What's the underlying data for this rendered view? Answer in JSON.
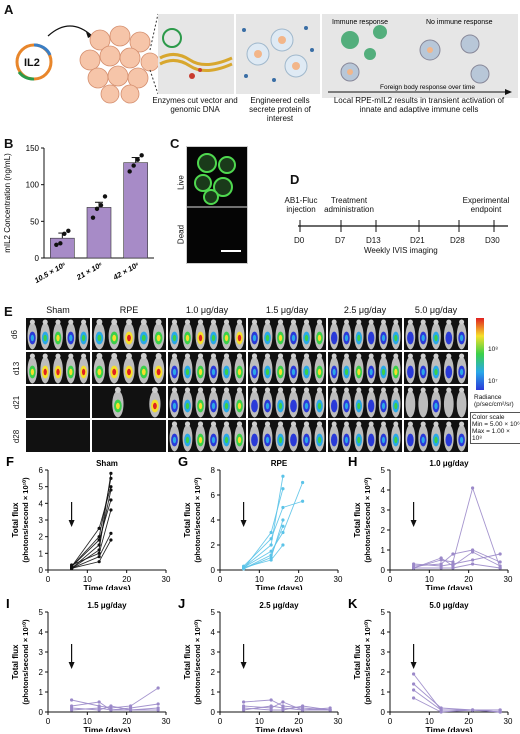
{
  "panelA": {
    "letter": "A",
    "gene": "IL2",
    "caption1": "Enzymes cut vector and genomic DNA",
    "caption2": "Engineered cells secrete protein of interest",
    "caption3": "Local RPE-mIL2 results in transient activation of innate and adaptive immune cells",
    "immune_label": "Immune response",
    "no_immune_label": "No immune response",
    "arrow_label": "Foreign body response over time"
  },
  "panelB": {
    "letter": "B",
    "chart_data": {
      "type": "bar",
      "categories": [
        "10.5 × 10⁶",
        "21 × 10⁶",
        "42 × 10⁶"
      ],
      "values": [
        27,
        69,
        130
      ],
      "errors": [
        7,
        7,
        7
      ],
      "points": [
        [
          18,
          20,
          33,
          37
        ],
        [
          55,
          67,
          72,
          84
        ],
        [
          118,
          126,
          134,
          140
        ]
      ],
      "ylabel": "mIL2 Concentration (ng/mL)",
      "yticks": [
        "0",
        "50",
        "100",
        "150"
      ],
      "ylim": [
        0,
        150
      ],
      "bar_color": "#a78bc7"
    }
  },
  "panelC": {
    "letter": "C",
    "live": "Live",
    "dead": "Dead"
  },
  "panelD": {
    "letter": "D",
    "top_labels": [
      "AB1-Fluc injection",
      "Treatment administration",
      "Experimental endpoint"
    ],
    "ticks": [
      "D0",
      "D7",
      "D13",
      "D21",
      "D28",
      "D30"
    ],
    "weekly": "Weekly IVIS imaging"
  },
  "panelE": {
    "letter": "E",
    "columns": [
      "Sham",
      "RPE",
      "1.0 μg/day",
      "1.5 μg/day",
      "2.5 μg/day",
      "5.0 μg/day"
    ],
    "rows": [
      "d6",
      "d13",
      "d21",
      "d28"
    ],
    "scale_high": "10⁸",
    "scale_low": "10⁷",
    "radiance": "Radiance (p/sec/cm²/sr)",
    "color_scale": "Color scale",
    "scale_min": "Min = 5.00 × 10⁶",
    "scale_max": "Max = 1.00 × 10⁸"
  },
  "flux_panels": [
    {
      "letter": "F",
      "title": "Sham",
      "color": "#111111",
      "ymax": 6,
      "yticks": [
        "0",
        "1",
        "2",
        "3",
        "4",
        "5",
        "6"
      ],
      "arrow_day": 6,
      "chart_data": {
        "type": "line",
        "x": [
          6,
          13,
          16
        ],
        "series": [
          {
            "values": [
              0.1,
              1.2,
              5.8
            ]
          },
          {
            "values": [
              0.2,
              2.0,
              5.5
            ]
          },
          {
            "values": [
              0.1,
              1.5,
              4.8
            ]
          },
          {
            "values": [
              0.3,
              1.0,
              3.6
            ]
          },
          {
            "values": [
              0.2,
              2.5,
              5.0
            ]
          },
          {
            "values": [
              0.1,
              0.8,
              2.2
            ]
          },
          {
            "values": [
              0.2,
              1.8,
              4.2
            ]
          },
          {
            "values": [
              0.1,
              0.5,
              1.8
            ]
          }
        ]
      }
    },
    {
      "letter": "G",
      "title": "RPE",
      "color": "#5bc3e8",
      "ymax": 8,
      "yticks": [
        "0",
        "2",
        "4",
        "6",
        "8"
      ],
      "arrow_day": 6,
      "chart_data": {
        "type": "line",
        "x": [
          6,
          13,
          16,
          21
        ],
        "series": [
          {
            "values": [
              0.2,
              2.0,
              7.5,
              null
            ]
          },
          {
            "values": [
              0.1,
              3.0,
              6.5,
              null
            ]
          },
          {
            "values": [
              0.3,
              2.5,
              5.0,
              5.5
            ]
          },
          {
            "values": [
              0.2,
              1.5,
              3.0,
              7.0
            ]
          },
          {
            "values": [
              0.1,
              1.0,
              4.0,
              null
            ]
          },
          {
            "values": [
              0.2,
              0.8,
              2.0,
              null
            ]
          },
          {
            "values": [
              0.1,
              1.2,
              3.5,
              null
            ]
          }
        ]
      }
    },
    {
      "letter": "H",
      "title": "1.0 μg/day",
      "color": "#9b89c9",
      "ymax": 5,
      "yticks": [
        "0",
        "1",
        "2",
        "3",
        "4",
        "5"
      ],
      "arrow_day": 6,
      "chart_data": {
        "type": "line",
        "x": [
          6,
          13,
          16,
          21,
          28
        ],
        "series": [
          {
            "values": [
              0.1,
              0.5,
              0.4,
              4.1,
              0.1
            ]
          },
          {
            "values": [
              0.2,
              0.3,
              0.8,
              1.0,
              0.4
            ]
          },
          {
            "values": [
              0.1,
              0.6,
              0.2,
              0.9,
              0.2
            ]
          },
          {
            "values": [
              0.3,
              0.2,
              0.3,
              0.5,
              0.8
            ]
          },
          {
            "values": [
              0.1,
              0.1,
              0.1,
              0.3,
              0.1
            ]
          }
        ]
      }
    },
    {
      "letter": "I",
      "title": "1.5 μg/day",
      "color": "#9b89c9",
      "ymax": 5,
      "yticks": [
        "0",
        "1",
        "2",
        "3",
        "4",
        "5"
      ],
      "arrow_day": 6,
      "chart_data": {
        "type": "line",
        "x": [
          6,
          13,
          16,
          21,
          28
        ],
        "series": [
          {
            "values": [
              0.6,
              0.3,
              0.2,
              0.3,
              1.2
            ]
          },
          {
            "values": [
              0.3,
              0.5,
              0.1,
              0.2,
              0.4
            ]
          },
          {
            "values": [
              0.2,
              0.1,
              0.3,
              0.1,
              0.2
            ]
          },
          {
            "values": [
              0.1,
              0.2,
              0.1,
              0.1,
              0.1
            ]
          }
        ]
      }
    },
    {
      "letter": "J",
      "title": "2.5 μg/day",
      "color": "#9b89c9",
      "ymax": 5,
      "yticks": [
        "0",
        "1",
        "2",
        "3",
        "4",
        "5"
      ],
      "arrow_day": 6,
      "chart_data": {
        "type": "line",
        "x": [
          6,
          13,
          16,
          21,
          28
        ],
        "series": [
          {
            "values": [
              0.5,
              0.6,
              0.3,
              0.2,
              0.1
            ]
          },
          {
            "values": [
              0.3,
              0.2,
              0.5,
              0.1,
              0.2
            ]
          },
          {
            "values": [
              0.2,
              0.1,
              0.1,
              0.3,
              0.1
            ]
          },
          {
            "values": [
              0.1,
              0.3,
              0.2,
              0.1,
              0.1
            ]
          }
        ]
      }
    },
    {
      "letter": "K",
      "title": "5.0 μg/day",
      "color": "#9b89c9",
      "ymax": 5,
      "yticks": [
        "0",
        "1",
        "2",
        "3",
        "4",
        "5"
      ],
      "arrow_day": 6,
      "chart_data": {
        "type": "line",
        "x": [
          6,
          13,
          21,
          28
        ],
        "series": [
          {
            "values": [
              1.9,
              0.1,
              0.1,
              0.1
            ]
          },
          {
            "values": [
              1.4,
              0.2,
              0.1,
              0.1
            ]
          },
          {
            "values": [
              1.1,
              0.1,
              0.1,
              0.0
            ]
          },
          {
            "values": [
              0.7,
              0.0,
              0.1,
              0.0
            ]
          }
        ]
      }
    }
  ],
  "flux_axis": {
    "ylabel1": "Total flux",
    "ylabel2": "(photons/second × 10¹⁰)",
    "xlabel": "Time (days)",
    "xticks": [
      "0",
      "10",
      "20",
      "30"
    ],
    "xmax": 30
  }
}
